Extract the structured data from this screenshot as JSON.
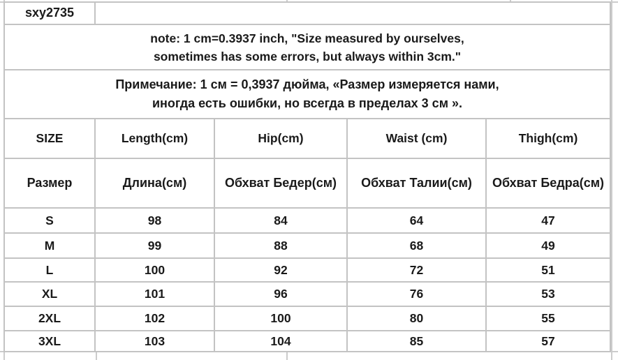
{
  "sheet": {
    "product_code": "sxy2735",
    "note_en_line1": "note: 1 cm=0.3937 inch, \"Size measured by ourselves,",
    "note_en_line2": "sometimes has some errors, but always within 3cm.\"",
    "note_ru_line1": "Примечание: 1 см = 0,3937 дюйма, «Размер измеряется нами,",
    "note_ru_line2": "иногда есть ошибки, но всегда в пределах 3 см ».",
    "gridline_color": "#c3c3c3",
    "text_color": "#1a1a1a"
  },
  "table": {
    "columns_en": [
      "SIZE",
      "Length(cm)",
      "Hip(cm)",
      "Waist (cm)",
      "Thigh(cm)"
    ],
    "columns_ru": [
      "Размер",
      "Длина(см)",
      "Обхват Бедер(см)",
      "Обхват Талии(см)",
      "Обхват Бедра(см)"
    ],
    "rows": [
      {
        "size": "S",
        "values": [
          98,
          84,
          64,
          47
        ]
      },
      {
        "size": "M",
        "values": [
          99,
          88,
          68,
          49
        ]
      },
      {
        "size": "L",
        "values": [
          100,
          92,
          72,
          51
        ]
      },
      {
        "size": "XL",
        "values": [
          101,
          96,
          76,
          53
        ]
      },
      {
        "size": "2XL",
        "values": [
          102,
          100,
          80,
          55
        ]
      },
      {
        "size": "3XL",
        "values": [
          103,
          104,
          85,
          57
        ]
      }
    ]
  }
}
